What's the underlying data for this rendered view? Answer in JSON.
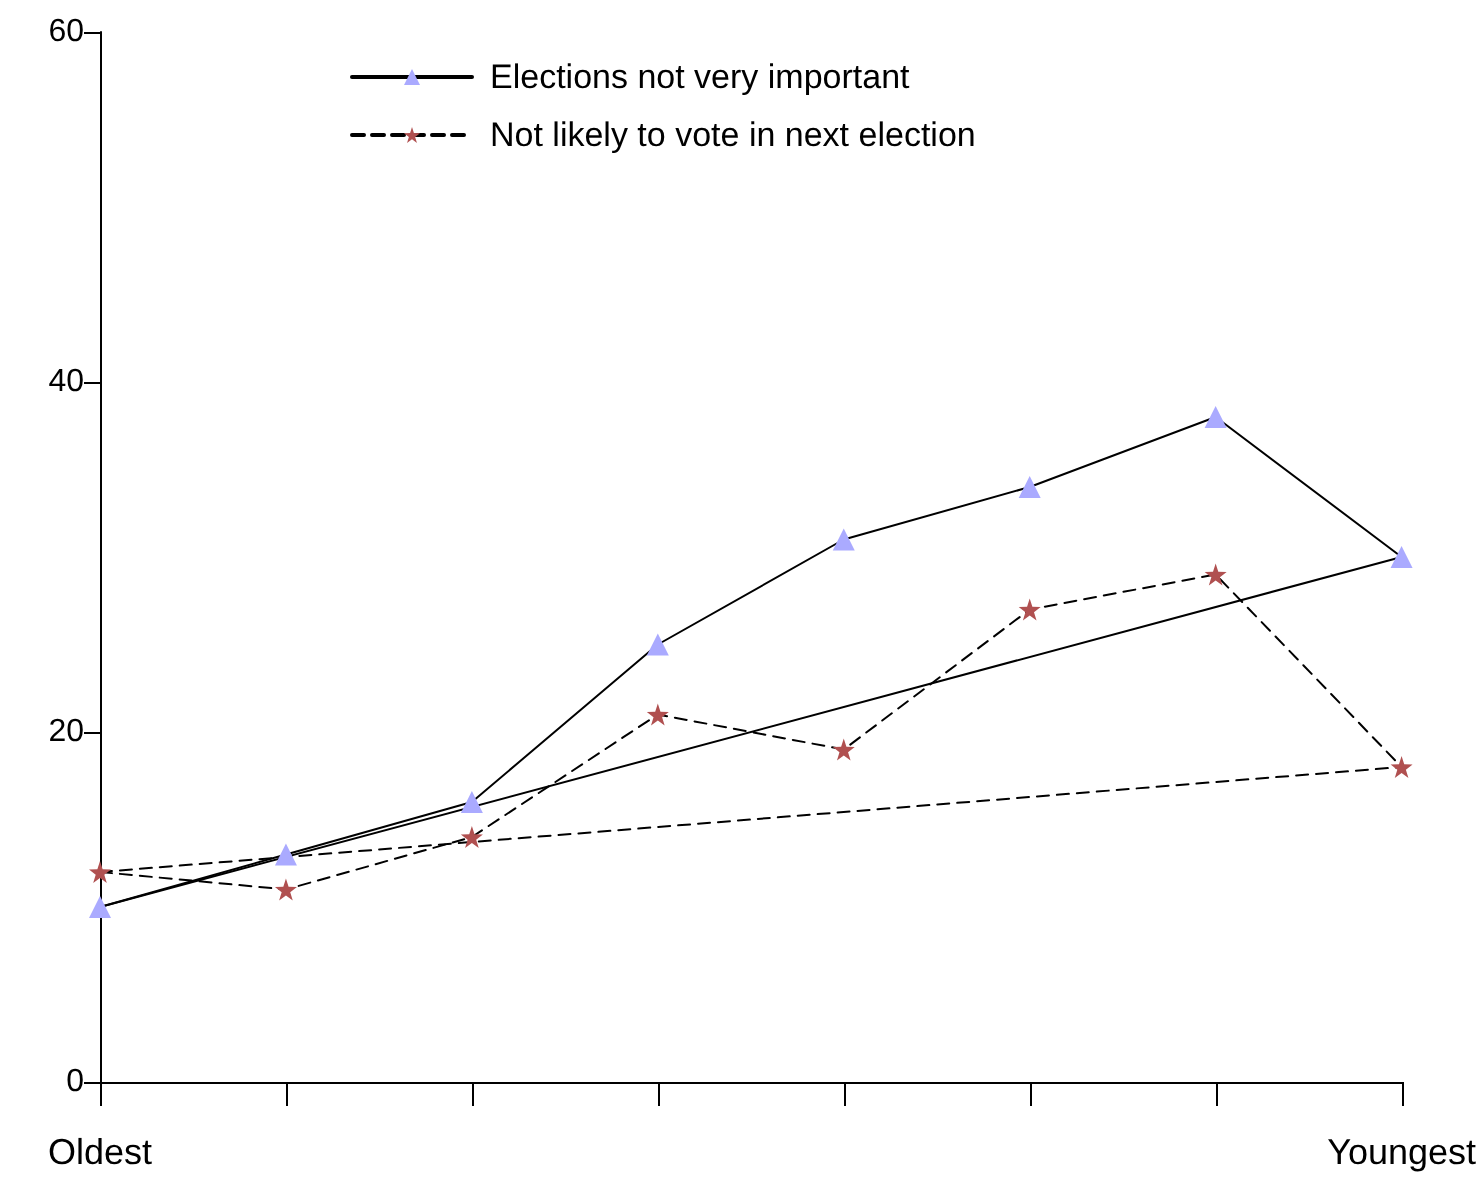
{
  "chart_data": {
    "type": "line",
    "categories": [
      "Oldest",
      null,
      null,
      null,
      null,
      null,
      null,
      "Youngest"
    ],
    "ylim": [
      0,
      60
    ],
    "yticks": [
      0,
      20,
      40,
      60
    ],
    "grid": false,
    "legend": "top",
    "series": [
      {
        "name": "Elections not very important",
        "color": "#aaaaff",
        "marker": "triangle",
        "line_style": "solid",
        "values": [
          10,
          13,
          16,
          25,
          31,
          34,
          38,
          30
        ]
      },
      {
        "name": "Not likely to vote in next election",
        "color": "#b05050",
        "marker": "star",
        "line_style": "dashed",
        "values": [
          12,
          11,
          14,
          21,
          19,
          27,
          29,
          18
        ]
      },
      {
        "type": "line",
        "color": "#000000",
        "marker": "none",
        "line_style": "solid",
        "x": [
          "Oldest",
          "Youngest"
        ],
        "values": [
          10,
          30
        ]
      },
      {
        "type": "line",
        "color": "#000000",
        "marker": "none",
        "line_style": "dashed",
        "x": [
          "Oldest",
          "Youngest"
        ],
        "values": [
          12,
          18
        ]
      }
    ]
  }
}
